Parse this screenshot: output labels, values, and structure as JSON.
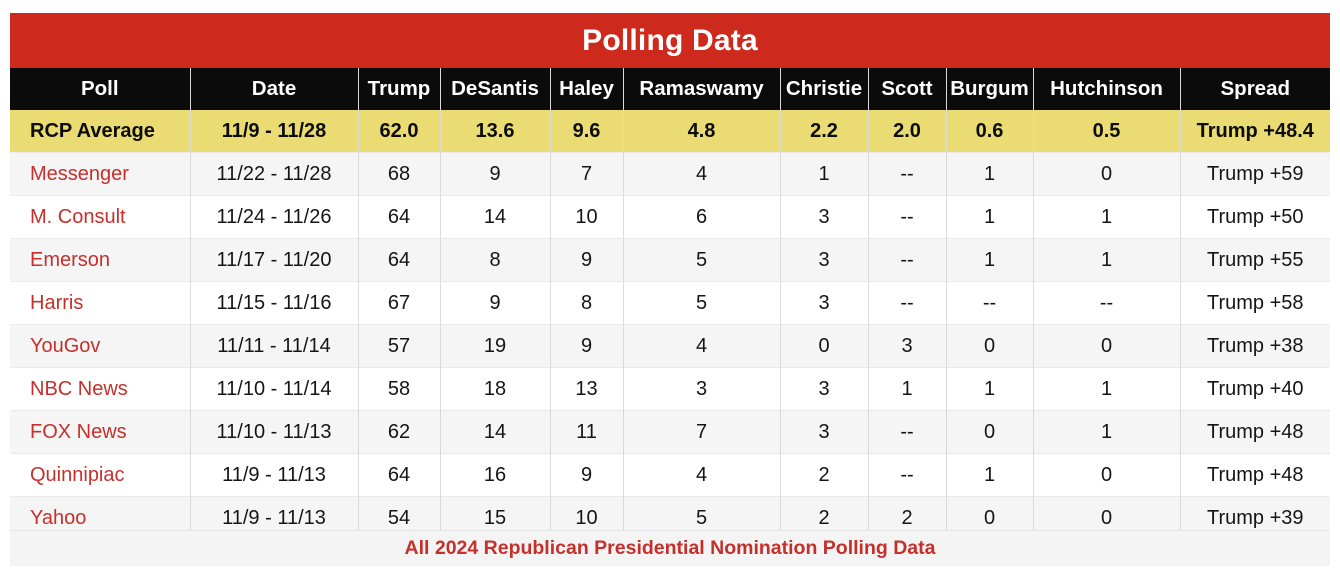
{
  "title": "Polling Data",
  "footer": {
    "caption": "All 2024 Republican Presidential Nomination Polling Data"
  },
  "colors": {
    "banner_red": "#CD291D",
    "header_bg": "#0B0B0B",
    "rcp_yellow": "#EADC73",
    "alt_row_gray": "#F5F5F5",
    "link_red": "#C5302B"
  },
  "chart_data": {
    "type": "table",
    "title": "Polling Data",
    "columns": [
      "Poll",
      "Date",
      "Trump",
      "DeSantis",
      "Haley",
      "Ramaswamy",
      "Christie",
      "Scott",
      "Burgum",
      "Hutchinson",
      "Spread"
    ],
    "average_row": [
      "RCP Average",
      "11/9 - 11/28",
      "62.0",
      "13.6",
      "9.6",
      "4.8",
      "2.2",
      "2.0",
      "0.6",
      "0.5",
      "Trump +48.4"
    ],
    "rows": [
      [
        "Messenger",
        "11/22 - 11/28",
        "68",
        "9",
        "7",
        "4",
        "1",
        "--",
        "1",
        "0",
        "Trump +59"
      ],
      [
        "M. Consult",
        "11/24 - 11/26",
        "64",
        "14",
        "10",
        "6",
        "3",
        "--",
        "1",
        "1",
        "Trump +50"
      ],
      [
        "Emerson",
        "11/17 - 11/20",
        "64",
        "8",
        "9",
        "5",
        "3",
        "--",
        "1",
        "1",
        "Trump +55"
      ],
      [
        "Harris",
        "11/15 - 11/16",
        "67",
        "9",
        "8",
        "5",
        "3",
        "--",
        "--",
        "--",
        "Trump +58"
      ],
      [
        "YouGov",
        "11/11 - 11/14",
        "57",
        "19",
        "9",
        "4",
        "0",
        "3",
        "0",
        "0",
        "Trump +38"
      ],
      [
        "NBC News",
        "11/10 - 11/14",
        "58",
        "18",
        "13",
        "3",
        "3",
        "1",
        "1",
        "1",
        "Trump +40"
      ],
      [
        "FOX News",
        "11/10 - 11/13",
        "62",
        "14",
        "11",
        "7",
        "3",
        "--",
        "0",
        "1",
        "Trump +48"
      ],
      [
        "Quinnipiac",
        "11/9 - 11/13",
        "64",
        "16",
        "9",
        "4",
        "2",
        "--",
        "1",
        "0",
        "Trump +48"
      ],
      [
        "Yahoo",
        "11/9 - 11/13",
        "54",
        "15",
        "10",
        "5",
        "2",
        "2",
        "0",
        "0",
        "Trump +39"
      ]
    ]
  }
}
